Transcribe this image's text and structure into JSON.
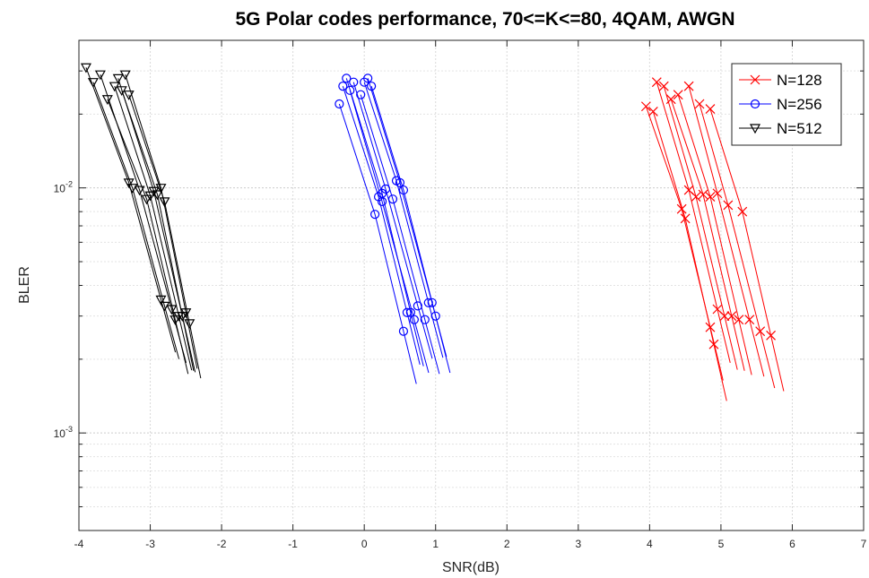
{
  "chart_data": {
    "type": "line",
    "title": "5G Polar codes performance, 70<=K<=80, 4QAM, AWGN",
    "xlabel": "SNR(dB)",
    "ylabel": "BLER",
    "xlim": [
      -4,
      7
    ],
    "ylim": [
      0.0004,
      0.04
    ],
    "y_scale": "log",
    "x_ticks": [
      "-4",
      "-3",
      "-2",
      "-1",
      "0",
      "1",
      "2",
      "3",
      "4",
      "5",
      "6",
      "7"
    ],
    "y_ticks": [
      {
        "base": "10",
        "exp": "-3",
        "value": 0.001
      },
      {
        "base": "10",
        "exp": "-2",
        "value": 0.01
      }
    ],
    "grid": true,
    "legend_position": "top-right",
    "series": [
      {
        "name": "N=128",
        "color": "#ff0000",
        "marker": "x",
        "curves": [
          {
            "x": [
              3.95,
              4.45,
              4.85
            ],
            "y": [
              0.0215,
              0.0082,
              0.0027
            ]
          },
          {
            "x": [
              4.05,
              4.5,
              4.9
            ],
            "y": [
              0.0205,
              0.0075,
              0.0023
            ]
          },
          {
            "x": [
              4.1,
              4.55,
              4.95
            ],
            "y": [
              0.027,
              0.0098,
              0.0032
            ]
          },
          {
            "x": [
              4.2,
              4.65,
              5.05
            ],
            "y": [
              0.026,
              0.0092,
              0.003
            ]
          },
          {
            "x": [
              4.3,
              4.75,
              5.15
            ],
            "y": [
              0.023,
              0.0094,
              0.003
            ]
          },
          {
            "x": [
              4.4,
              4.85,
              5.25
            ],
            "y": [
              0.024,
              0.0092,
              0.0029
            ]
          },
          {
            "x": [
              4.55,
              4.95,
              5.4
            ],
            "y": [
              0.026,
              0.0095,
              0.0029
            ]
          },
          {
            "x": [
              4.7,
              5.1,
              5.55
            ],
            "y": [
              0.022,
              0.0085,
              0.0026
            ]
          },
          {
            "x": [
              4.85,
              5.3,
              5.7
            ],
            "y": [
              0.021,
              0.008,
              0.0025
            ]
          }
        ]
      },
      {
        "name": "N=256",
        "color": "#0000ff",
        "marker": "o",
        "curves": [
          {
            "x": [
              -0.35,
              0.15,
              0.55
            ],
            "y": [
              0.022,
              0.0078,
              0.0026
            ]
          },
          {
            "x": [
              -0.3,
              0.2,
              0.6
            ],
            "y": [
              0.026,
              0.0092,
              0.0031
            ]
          },
          {
            "x": [
              -0.25,
              0.25,
              0.65
            ],
            "y": [
              0.028,
              0.0095,
              0.0031
            ]
          },
          {
            "x": [
              -0.2,
              0.25,
              0.7
            ],
            "y": [
              0.025,
              0.0088,
              0.0029
            ]
          },
          {
            "x": [
              -0.15,
              0.3,
              0.75
            ],
            "y": [
              0.027,
              0.0099,
              0.0033
            ]
          },
          {
            "x": [
              -0.05,
              0.4,
              0.85
            ],
            "y": [
              0.024,
              0.009,
              0.0029
            ]
          },
          {
            "x": [
              0.0,
              0.45,
              0.9
            ],
            "y": [
              0.027,
              0.0107,
              0.0034
            ]
          },
          {
            "x": [
              0.05,
              0.5,
              0.95
            ],
            "y": [
              0.028,
              0.0105,
              0.0034
            ]
          },
          {
            "x": [
              0.1,
              0.55,
              1.0
            ],
            "y": [
              0.026,
              0.0098,
              0.003
            ]
          }
        ]
      },
      {
        "name": "N=512",
        "color": "#000000",
        "marker": "v",
        "curves": [
          {
            "x": [
              -3.9,
              -3.3,
              -2.85
            ],
            "y": [
              0.031,
              0.0105,
              0.0035
            ]
          },
          {
            "x": [
              -3.8,
              -3.25,
              -2.8
            ],
            "y": [
              0.027,
              0.01,
              0.0033
            ]
          },
          {
            "x": [
              -3.7,
              -3.15,
              -2.7
            ],
            "y": [
              0.029,
              0.0098,
              0.0032
            ]
          },
          {
            "x": [
              -3.6,
              -3.05,
              -2.65
            ],
            "y": [
              0.023,
              0.009,
              0.0029
            ]
          },
          {
            "x": [
              -3.5,
              -3.0,
              -2.6
            ],
            "y": [
              0.026,
              0.0093,
              0.003
            ]
          },
          {
            "x": [
              -3.45,
              -2.95,
              -2.55
            ],
            "y": [
              0.028,
              0.0097,
              0.003
            ]
          },
          {
            "x": [
              -3.4,
              -2.9,
              -2.55
            ],
            "y": [
              0.025,
              0.0094,
              0.003
            ]
          },
          {
            "x": [
              -3.35,
              -2.85,
              -2.5
            ],
            "y": [
              0.029,
              0.01,
              0.0031
            ]
          },
          {
            "x": [
              -3.3,
              -2.8,
              -2.45
            ],
            "y": [
              0.024,
              0.0088,
              0.0028
            ]
          }
        ]
      }
    ]
  }
}
